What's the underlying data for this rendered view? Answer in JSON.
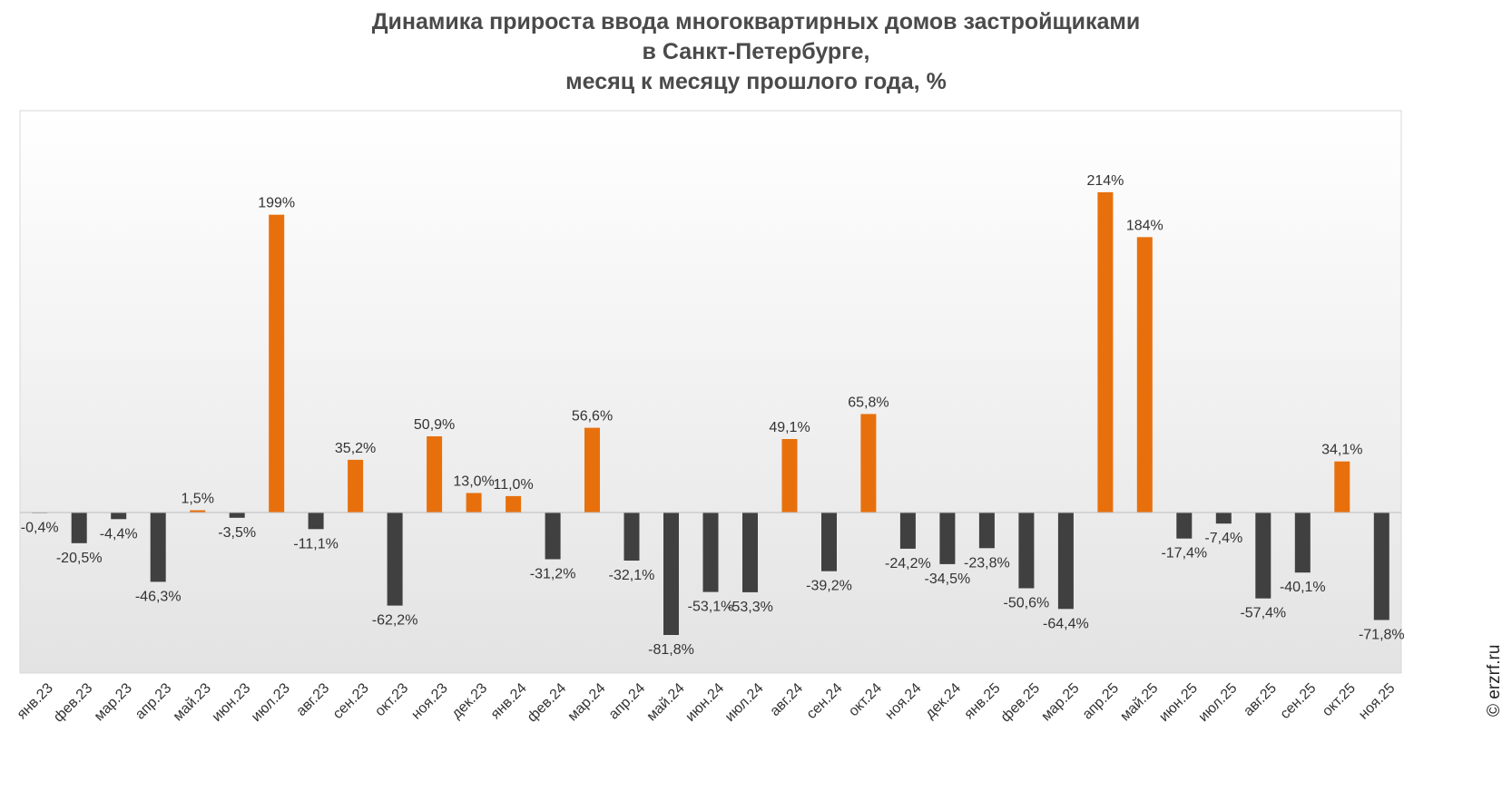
{
  "chart_data": {
    "type": "bar",
    "title_lines": [
      "Динамика прироста ввода многоквартирных домов застройщиками",
      "в Санкт-Петербурге,",
      "месяц к месяцу прошлого года, %"
    ],
    "categories": [
      "янв.23",
      "фев.23",
      "мар.23",
      "апр.23",
      "май.23",
      "июн.23",
      "июл.23",
      "авг.23",
      "сен.23",
      "окт.23",
      "ноя.23",
      "дек.23",
      "янв.24",
      "фев.24",
      "мар.24",
      "апр.24",
      "май.24",
      "июн.24",
      "июл.24",
      "авг.24",
      "сен.24",
      "окт.24",
      "ноя.24",
      "дек.24",
      "янв.25",
      "фев.25",
      "мар.25",
      "апр.25",
      "май.25",
      "июн.25",
      "июл.25",
      "авг.25",
      "сен.25",
      "окт.25",
      "ноя.25"
    ],
    "values": [
      -0.4,
      -20.5,
      -4.4,
      -46.3,
      1.5,
      -3.5,
      199,
      -11.1,
      35.2,
      -62.2,
      50.9,
      13.0,
      11.0,
      -31.2,
      56.6,
      -32.1,
      -81.8,
      -53.1,
      -53.3,
      49.1,
      -39.2,
      65.8,
      -24.2,
      -34.5,
      -23.8,
      -50.6,
      -64.4,
      214,
      184,
      -17.4,
      -7.4,
      -57.4,
      -40.1,
      34.1,
      -71.8
    ],
    "data_labels": [
      "-0,4%",
      "-20,5%",
      "-4,4%",
      "-46,3%",
      "1,5%",
      "-3,5%",
      "199%",
      "-11,1%",
      "35,2%",
      "-62,2%",
      "50,9%",
      "13,0%",
      "11,0%",
      "-31,2%",
      "56,6%",
      "-32,1%",
      "-81,8%",
      "-53,1%",
      "-53,3%",
      "49,1%",
      "-39,2%",
      "65,8%",
      "-24,2%",
      "-34,5%",
      "-23,8%",
      "-50,6%",
      "-64,4%",
      "214%",
      "184%",
      "-17,4%",
      "-7,4%",
      "-57,4%",
      "-40,1%",
      "34,1%",
      "-71,8%"
    ],
    "ylim": [
      -100,
      250
    ],
    "grid": false,
    "colors": {
      "positive": "#e8700c",
      "negative": "#404040"
    }
  },
  "credit": "© erzrf.ru"
}
